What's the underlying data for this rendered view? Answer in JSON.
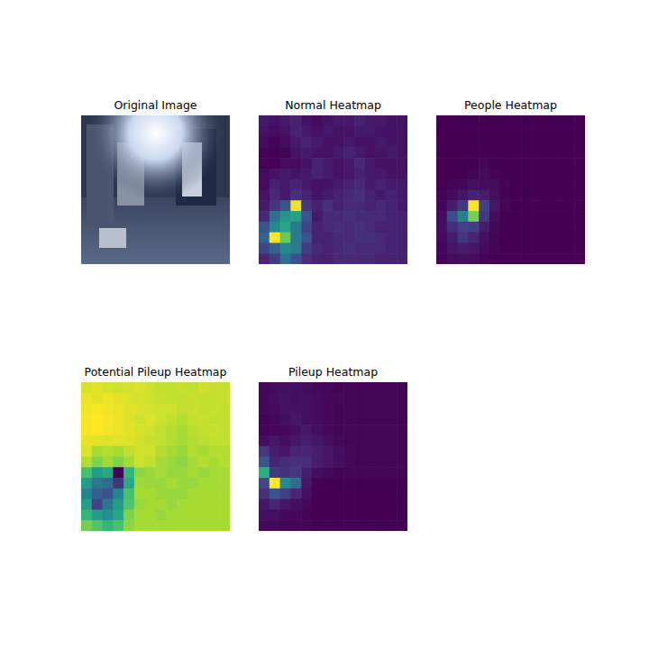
{
  "chart_data": [
    {
      "type": "image",
      "title": "Original Image"
    },
    {
      "type": "heatmap",
      "title": "Normal Heatmap",
      "tick_labels": false,
      "cells": [
        [
          0.12,
          0.1,
          0.12,
          0.14,
          0.1,
          0.08,
          0.1,
          0.12,
          0.12,
          0.14,
          0.12,
          0.12,
          0.1,
          0.1
        ],
        [
          0.1,
          0.08,
          0.1,
          0.14,
          0.12,
          0.1,
          0.12,
          0.1,
          0.1,
          0.12,
          0.12,
          0.1,
          0.1,
          0.1
        ],
        [
          0.08,
          0.06,
          0.08,
          0.12,
          0.14,
          0.12,
          0.1,
          0.1,
          0.12,
          0.1,
          0.1,
          0.12,
          0.1,
          0.1
        ],
        [
          0.06,
          0.05,
          0.06,
          0.1,
          0.12,
          0.1,
          0.1,
          0.12,
          0.14,
          0.12,
          0.1,
          0.1,
          0.12,
          0.1
        ],
        [
          0.06,
          0.05,
          0.08,
          0.08,
          0.1,
          0.14,
          0.12,
          0.1,
          0.12,
          0.16,
          0.12,
          0.1,
          0.1,
          0.1
        ],
        [
          0.08,
          0.1,
          0.12,
          0.1,
          0.12,
          0.14,
          0.12,
          0.1,
          0.12,
          0.14,
          0.12,
          0.12,
          0.1,
          0.1
        ],
        [
          0.08,
          0.14,
          0.12,
          0.14,
          0.12,
          0.1,
          0.1,
          0.12,
          0.14,
          0.16,
          0.12,
          0.14,
          0.12,
          0.12
        ],
        [
          0.1,
          0.16,
          0.12,
          0.18,
          0.14,
          0.1,
          0.12,
          0.14,
          0.16,
          0.18,
          0.14,
          0.12,
          0.14,
          0.12
        ],
        [
          0.12,
          0.2,
          0.3,
          0.98,
          0.2,
          0.14,
          0.18,
          0.14,
          0.16,
          0.16,
          0.14,
          0.16,
          0.14,
          0.12
        ],
        [
          0.16,
          0.4,
          0.55,
          0.6,
          0.3,
          0.12,
          0.16,
          0.16,
          0.18,
          0.16,
          0.16,
          0.16,
          0.14,
          0.14
        ],
        [
          0.3,
          0.5,
          0.62,
          0.45,
          0.25,
          0.14,
          0.16,
          0.18,
          0.16,
          0.18,
          0.16,
          0.14,
          0.14,
          0.14
        ],
        [
          0.35,
          1.0,
          0.78,
          0.45,
          0.3,
          0.14,
          0.14,
          0.16,
          0.16,
          0.18,
          0.18,
          0.16,
          0.14,
          0.14
        ],
        [
          0.25,
          0.35,
          0.5,
          0.45,
          0.22,
          0.16,
          0.14,
          0.16,
          0.18,
          0.16,
          0.16,
          0.16,
          0.14,
          0.14
        ],
        [
          0.15,
          0.22,
          0.4,
          0.3,
          0.18,
          0.14,
          0.14,
          0.16,
          0.16,
          0.16,
          0.16,
          0.14,
          0.14,
          0.14
        ]
      ]
    },
    {
      "type": "heatmap",
      "title": "People Heatmap",
      "tick_labels": false,
      "cells": [
        [
          0.02,
          0.02,
          0.02,
          0.02,
          0.02,
          0.02,
          0.02,
          0.02,
          0.02,
          0.02,
          0.02,
          0.02,
          0.02,
          0.02
        ],
        [
          0.02,
          0.02,
          0.02,
          0.02,
          0.02,
          0.02,
          0.02,
          0.02,
          0.02,
          0.02,
          0.02,
          0.02,
          0.02,
          0.02
        ],
        [
          0.02,
          0.02,
          0.02,
          0.02,
          0.02,
          0.02,
          0.02,
          0.02,
          0.02,
          0.02,
          0.02,
          0.02,
          0.02,
          0.02
        ],
        [
          0.02,
          0.02,
          0.02,
          0.02,
          0.02,
          0.02,
          0.02,
          0.02,
          0.02,
          0.02,
          0.02,
          0.02,
          0.02,
          0.02
        ],
        [
          0.02,
          0.02,
          0.02,
          0.02,
          0.03,
          0.02,
          0.02,
          0.02,
          0.02,
          0.02,
          0.02,
          0.02,
          0.02,
          0.02
        ],
        [
          0.02,
          0.02,
          0.02,
          0.03,
          0.05,
          0.03,
          0.02,
          0.02,
          0.02,
          0.02,
          0.02,
          0.02,
          0.02,
          0.02
        ],
        [
          0.02,
          0.03,
          0.04,
          0.06,
          0.05,
          0.05,
          0.03,
          0.02,
          0.02,
          0.02,
          0.02,
          0.02,
          0.02,
          0.02
        ],
        [
          0.03,
          0.05,
          0.08,
          0.12,
          0.1,
          0.06,
          0.03,
          0.02,
          0.02,
          0.02,
          0.02,
          0.02,
          0.02,
          0.02
        ],
        [
          0.04,
          0.1,
          0.18,
          1.0,
          0.22,
          0.08,
          0.03,
          0.02,
          0.02,
          0.02,
          0.02,
          0.02,
          0.02,
          0.02
        ],
        [
          0.05,
          0.25,
          0.45,
          0.8,
          0.18,
          0.05,
          0.02,
          0.02,
          0.02,
          0.02,
          0.02,
          0.02,
          0.02,
          0.02
        ],
        [
          0.06,
          0.15,
          0.22,
          0.2,
          0.1,
          0.04,
          0.02,
          0.02,
          0.02,
          0.02,
          0.02,
          0.02,
          0.02,
          0.02
        ],
        [
          0.05,
          0.1,
          0.18,
          0.12,
          0.06,
          0.03,
          0.02,
          0.02,
          0.02,
          0.02,
          0.02,
          0.02,
          0.02,
          0.02
        ],
        [
          0.04,
          0.08,
          0.1,
          0.08,
          0.05,
          0.03,
          0.02,
          0.02,
          0.02,
          0.02,
          0.02,
          0.02,
          0.02,
          0.02
        ],
        [
          0.03,
          0.05,
          0.06,
          0.05,
          0.03,
          0.02,
          0.02,
          0.02,
          0.02,
          0.02,
          0.02,
          0.02,
          0.02,
          0.02
        ]
      ]
    },
    {
      "type": "heatmap",
      "title": "Potential Pileup Heatmap",
      "tick_labels": false,
      "cells": [
        [
          0.93,
          0.95,
          0.93,
          0.92,
          0.93,
          0.94,
          0.92,
          0.9,
          0.9,
          0.91,
          0.9,
          0.92,
          0.91,
          0.91
        ],
        [
          0.96,
          0.95,
          0.96,
          0.95,
          0.94,
          0.93,
          0.92,
          0.91,
          0.9,
          0.9,
          0.91,
          0.9,
          0.91,
          0.91
        ],
        [
          0.97,
          0.98,
          0.97,
          0.96,
          0.95,
          0.94,
          0.93,
          0.92,
          0.92,
          0.9,
          0.91,
          0.9,
          0.91,
          0.9
        ],
        [
          0.98,
          0.99,
          0.98,
          0.96,
          0.94,
          0.92,
          0.94,
          0.92,
          0.9,
          0.88,
          0.9,
          0.91,
          0.9,
          0.9
        ],
        [
          0.98,
          0.99,
          0.97,
          0.96,
          0.95,
          0.93,
          0.92,
          0.9,
          0.88,
          0.86,
          0.89,
          0.9,
          0.91,
          0.9
        ],
        [
          0.96,
          0.95,
          0.94,
          0.95,
          0.94,
          0.92,
          0.91,
          0.9,
          0.88,
          0.86,
          0.88,
          0.89,
          0.9,
          0.9
        ],
        [
          0.94,
          0.86,
          0.88,
          0.86,
          0.9,
          0.92,
          0.92,
          0.88,
          0.86,
          0.84,
          0.88,
          0.86,
          0.88,
          0.88
        ],
        [
          0.88,
          0.8,
          0.85,
          0.8,
          0.86,
          0.92,
          0.9,
          0.86,
          0.84,
          0.82,
          0.86,
          0.88,
          0.86,
          0.88
        ],
        [
          0.7,
          0.55,
          0.6,
          0.0,
          0.65,
          0.82,
          0.84,
          0.86,
          0.84,
          0.84,
          0.86,
          0.84,
          0.86,
          0.86
        ],
        [
          0.55,
          0.4,
          0.35,
          0.15,
          0.6,
          0.85,
          0.84,
          0.84,
          0.86,
          0.84,
          0.84,
          0.86,
          0.86,
          0.86
        ],
        [
          0.45,
          0.3,
          0.25,
          0.45,
          0.7,
          0.86,
          0.86,
          0.84,
          0.84,
          0.84,
          0.86,
          0.86,
          0.86,
          0.86
        ],
        [
          0.55,
          0.2,
          0.4,
          0.55,
          0.72,
          0.84,
          0.86,
          0.86,
          0.84,
          0.86,
          0.86,
          0.86,
          0.86,
          0.86
        ],
        [
          0.65,
          0.55,
          0.5,
          0.6,
          0.8,
          0.86,
          0.86,
          0.84,
          0.86,
          0.86,
          0.86,
          0.86,
          0.86,
          0.86
        ],
        [
          0.78,
          0.72,
          0.65,
          0.7,
          0.82,
          0.86,
          0.86,
          0.86,
          0.86,
          0.86,
          0.86,
          0.86,
          0.86,
          0.86
        ]
      ]
    },
    {
      "type": "heatmap",
      "title": "Pileup Heatmap",
      "tick_labels": false,
      "cells": [
        [
          0.06,
          0.07,
          0.08,
          0.08,
          0.07,
          0.06,
          0.06,
          0.05,
          0.05,
          0.05,
          0.05,
          0.05,
          0.05,
          0.05
        ],
        [
          0.06,
          0.08,
          0.09,
          0.08,
          0.08,
          0.07,
          0.06,
          0.06,
          0.05,
          0.05,
          0.05,
          0.05,
          0.05,
          0.05
        ],
        [
          0.06,
          0.07,
          0.09,
          0.09,
          0.08,
          0.07,
          0.06,
          0.05,
          0.05,
          0.05,
          0.05,
          0.05,
          0.05,
          0.05
        ],
        [
          0.05,
          0.06,
          0.08,
          0.1,
          0.08,
          0.07,
          0.06,
          0.05,
          0.05,
          0.05,
          0.05,
          0.05,
          0.05,
          0.05
        ],
        [
          0.05,
          0.06,
          0.06,
          0.08,
          0.1,
          0.08,
          0.06,
          0.05,
          0.05,
          0.05,
          0.05,
          0.05,
          0.05,
          0.05
        ],
        [
          0.08,
          0.1,
          0.08,
          0.1,
          0.12,
          0.1,
          0.08,
          0.06,
          0.05,
          0.05,
          0.05,
          0.05,
          0.05,
          0.05
        ],
        [
          0.2,
          0.12,
          0.1,
          0.14,
          0.14,
          0.12,
          0.1,
          0.08,
          0.06,
          0.05,
          0.05,
          0.05,
          0.05,
          0.05
        ],
        [
          0.3,
          0.14,
          0.16,
          0.18,
          0.16,
          0.12,
          0.1,
          0.08,
          0.06,
          0.05,
          0.05,
          0.05,
          0.05,
          0.05
        ],
        [
          0.65,
          0.2,
          0.18,
          0.2,
          0.12,
          0.08,
          0.06,
          0.05,
          0.05,
          0.05,
          0.05,
          0.05,
          0.05,
          0.05
        ],
        [
          0.25,
          1.0,
          0.5,
          0.38,
          0.1,
          0.04,
          0.04,
          0.04,
          0.04,
          0.04,
          0.04,
          0.04,
          0.04,
          0.04
        ],
        [
          0.18,
          0.3,
          0.22,
          0.14,
          0.08,
          0.04,
          0.04,
          0.04,
          0.04,
          0.04,
          0.04,
          0.04,
          0.04,
          0.04
        ],
        [
          0.1,
          0.14,
          0.1,
          0.08,
          0.06,
          0.04,
          0.04,
          0.04,
          0.04,
          0.04,
          0.04,
          0.04,
          0.04,
          0.04
        ],
        [
          0.08,
          0.08,
          0.06,
          0.06,
          0.05,
          0.04,
          0.04,
          0.04,
          0.04,
          0.04,
          0.04,
          0.04,
          0.04,
          0.04
        ],
        [
          0.06,
          0.06,
          0.05,
          0.05,
          0.05,
          0.04,
          0.04,
          0.04,
          0.04,
          0.04,
          0.04,
          0.04,
          0.04,
          0.04
        ]
      ]
    }
  ]
}
